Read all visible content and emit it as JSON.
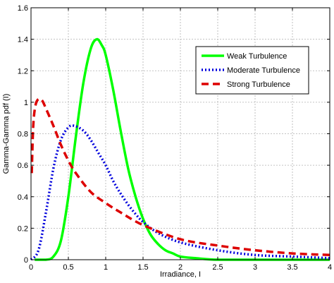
{
  "chart_data": {
    "type": "line",
    "title": "",
    "xlabel": "Irradiance, I",
    "ylabel": "Gamma-Gamma pdf (I)",
    "xlim": [
      0,
      4
    ],
    "ylim": [
      0,
      1.6
    ],
    "xticks": [
      0,
      0.5,
      1,
      1.5,
      2,
      2.5,
      3,
      3.5,
      4
    ],
    "xtick_labels": [
      "0",
      "0.5",
      "1",
      "1.5",
      "2",
      "2.5",
      "3",
      "3.5",
      "4"
    ],
    "yticks": [
      0,
      0.2,
      0.4,
      0.6,
      0.8,
      1,
      1.2,
      1.4,
      1.6
    ],
    "ytick_labels": [
      "0",
      "0.2",
      "0.4",
      "0.6",
      "0.8",
      "1",
      "1.2",
      "1.4",
      "1.6"
    ],
    "grid": true,
    "legend_position": "top-right",
    "series": [
      {
        "name": "Weak Turbulence",
        "color": "#00ff00",
        "style": "solid",
        "x": [
          0.05,
          0.2,
          0.3,
          0.4,
          0.5,
          0.6,
          0.7,
          0.8,
          0.88,
          0.95,
          1.0,
          1.1,
          1.2,
          1.3,
          1.4,
          1.5,
          1.6,
          1.7,
          1.8,
          1.9,
          2.0,
          2.2,
          2.5,
          3.0,
          4.0
        ],
        "y": [
          0.0,
          0.0,
          0.02,
          0.12,
          0.4,
          0.78,
          1.12,
          1.34,
          1.4,
          1.36,
          1.3,
          1.08,
          0.82,
          0.58,
          0.4,
          0.26,
          0.16,
          0.1,
          0.06,
          0.04,
          0.02,
          0.01,
          0.0,
          0.0,
          0.0
        ]
      },
      {
        "name": "Moderate Turbulence",
        "color": "#0000dd",
        "style": "dotted",
        "x": [
          0.0,
          0.1,
          0.2,
          0.3,
          0.4,
          0.5,
          0.58,
          0.7,
          0.8,
          0.9,
          1.0,
          1.1,
          1.2,
          1.3,
          1.4,
          1.5,
          1.7,
          2.0,
          2.5,
          3.0,
          3.5,
          4.0
        ],
        "y": [
          0.0,
          0.06,
          0.3,
          0.58,
          0.76,
          0.84,
          0.85,
          0.82,
          0.76,
          0.68,
          0.6,
          0.5,
          0.42,
          0.35,
          0.29,
          0.24,
          0.17,
          0.11,
          0.06,
          0.03,
          0.02,
          0.01
        ]
      },
      {
        "name": "Strong Turbulence",
        "color": "#dd0000",
        "style": "dashed",
        "x": [
          0.01,
          0.03,
          0.06,
          0.1,
          0.15,
          0.2,
          0.3,
          0.4,
          0.5,
          0.6,
          0.8,
          1.0,
          1.2,
          1.5,
          2.0,
          2.5,
          3.0,
          3.5,
          4.0
        ],
        "y": [
          0.55,
          0.85,
          0.98,
          1.02,
          1.01,
          0.96,
          0.85,
          0.73,
          0.63,
          0.55,
          0.43,
          0.36,
          0.3,
          0.22,
          0.13,
          0.09,
          0.06,
          0.04,
          0.03
        ]
      }
    ]
  }
}
